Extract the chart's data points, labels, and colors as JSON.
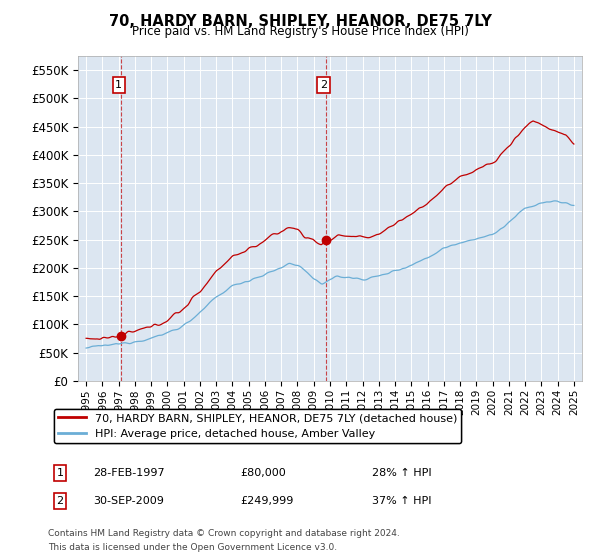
{
  "title": "70, HARDY BARN, SHIPLEY, HEANOR, DE75 7LY",
  "subtitle": "Price paid vs. HM Land Registry's House Price Index (HPI)",
  "legend_line1": "70, HARDY BARN, SHIPLEY, HEANOR, DE75 7LY (detached house)",
  "legend_line2": "HPI: Average price, detached house, Amber Valley",
  "footnote1": "Contains HM Land Registry data © Crown copyright and database right 2024.",
  "footnote2": "This data is licensed under the Open Government Licence v3.0.",
  "annotation1_label": "1",
  "annotation1_date": "28-FEB-1997",
  "annotation1_price": "£80,000",
  "annotation1_hpi": "28% ↑ HPI",
  "annotation2_label": "2",
  "annotation2_date": "30-SEP-2009",
  "annotation2_price": "£249,999",
  "annotation2_hpi": "37% ↑ HPI",
  "sale1_year": 1997.16,
  "sale1_price": 80000,
  "sale2_year": 2009.75,
  "sale2_price": 249999,
  "hpi_color": "#6baed6",
  "price_color": "#c00000",
  "background_color": "#dce6f1",
  "ylim_min": 0,
  "ylim_max": 575000,
  "xlim_min": 1994.5,
  "xlim_max": 2025.5,
  "ytick_values": [
    0,
    50000,
    100000,
    150000,
    200000,
    250000,
    300000,
    350000,
    400000,
    450000,
    500000,
    550000
  ],
  "ytick_labels": [
    "£0",
    "£50K",
    "£100K",
    "£150K",
    "£200K",
    "£250K",
    "£300K",
    "£350K",
    "£400K",
    "£450K",
    "£500K",
    "£550K"
  ],
  "xtick_years": [
    1995,
    1996,
    1997,
    1998,
    1999,
    2000,
    2001,
    2002,
    2003,
    2004,
    2005,
    2006,
    2007,
    2008,
    2009,
    2010,
    2011,
    2012,
    2013,
    2014,
    2015,
    2016,
    2017,
    2018,
    2019,
    2020,
    2021,
    2022,
    2023,
    2024,
    2025
  ],
  "hpi_keypoints": [
    [
      1995.0,
      58000
    ],
    [
      1996.0,
      62000
    ],
    [
      1997.0,
      65000
    ],
    [
      1998.0,
      70000
    ],
    [
      1999.0,
      75000
    ],
    [
      2000.0,
      85000
    ],
    [
      2001.0,
      98000
    ],
    [
      2002.0,
      120000
    ],
    [
      2003.0,
      148000
    ],
    [
      2004.0,
      168000
    ],
    [
      2005.0,
      178000
    ],
    [
      2006.0,
      188000
    ],
    [
      2007.0,
      200000
    ],
    [
      2007.5,
      208000
    ],
    [
      2008.0,
      205000
    ],
    [
      2008.5,
      195000
    ],
    [
      2009.0,
      178000
    ],
    [
      2009.5,
      172000
    ],
    [
      2010.0,
      180000
    ],
    [
      2010.5,
      185000
    ],
    [
      2011.0,
      183000
    ],
    [
      2012.0,
      180000
    ],
    [
      2013.0,
      185000
    ],
    [
      2014.0,
      195000
    ],
    [
      2015.0,
      205000
    ],
    [
      2016.0,
      218000
    ],
    [
      2017.0,
      235000
    ],
    [
      2018.0,
      245000
    ],
    [
      2019.0,
      252000
    ],
    [
      2020.0,
      258000
    ],
    [
      2021.0,
      280000
    ],
    [
      2022.0,
      305000
    ],
    [
      2023.0,
      315000
    ],
    [
      2024.0,
      318000
    ],
    [
      2025.0,
      310000
    ]
  ],
  "price_keypoints": [
    [
      1995.0,
      74000
    ],
    [
      1996.0,
      76000
    ],
    [
      1997.0,
      78000
    ],
    [
      1997.16,
      80000
    ],
    [
      1998.0,
      87000
    ],
    [
      1999.0,
      95000
    ],
    [
      2000.0,
      108000
    ],
    [
      2001.0,
      128000
    ],
    [
      2002.0,
      158000
    ],
    [
      2003.0,
      195000
    ],
    [
      2004.0,
      220000
    ],
    [
      2005.0,
      233000
    ],
    [
      2006.0,
      248000
    ],
    [
      2007.0,
      265000
    ],
    [
      2007.5,
      272000
    ],
    [
      2008.0,
      268000
    ],
    [
      2008.5,
      255000
    ],
    [
      2009.0,
      248000
    ],
    [
      2009.5,
      240000
    ],
    [
      2009.75,
      249999
    ],
    [
      2010.0,
      250000
    ],
    [
      2010.5,
      258000
    ],
    [
      2011.0,
      256000
    ],
    [
      2012.0,
      252000
    ],
    [
      2013.0,
      260000
    ],
    [
      2014.0,
      278000
    ],
    [
      2015.0,
      295000
    ],
    [
      2016.0,
      315000
    ],
    [
      2017.0,
      340000
    ],
    [
      2018.0,
      360000
    ],
    [
      2019.0,
      375000
    ],
    [
      2020.0,
      385000
    ],
    [
      2021.0,
      415000
    ],
    [
      2022.0,
      450000
    ],
    [
      2022.5,
      460000
    ],
    [
      2023.0,
      455000
    ],
    [
      2023.5,
      445000
    ],
    [
      2024.0,
      440000
    ],
    [
      2024.5,
      435000
    ],
    [
      2025.0,
      420000
    ]
  ]
}
